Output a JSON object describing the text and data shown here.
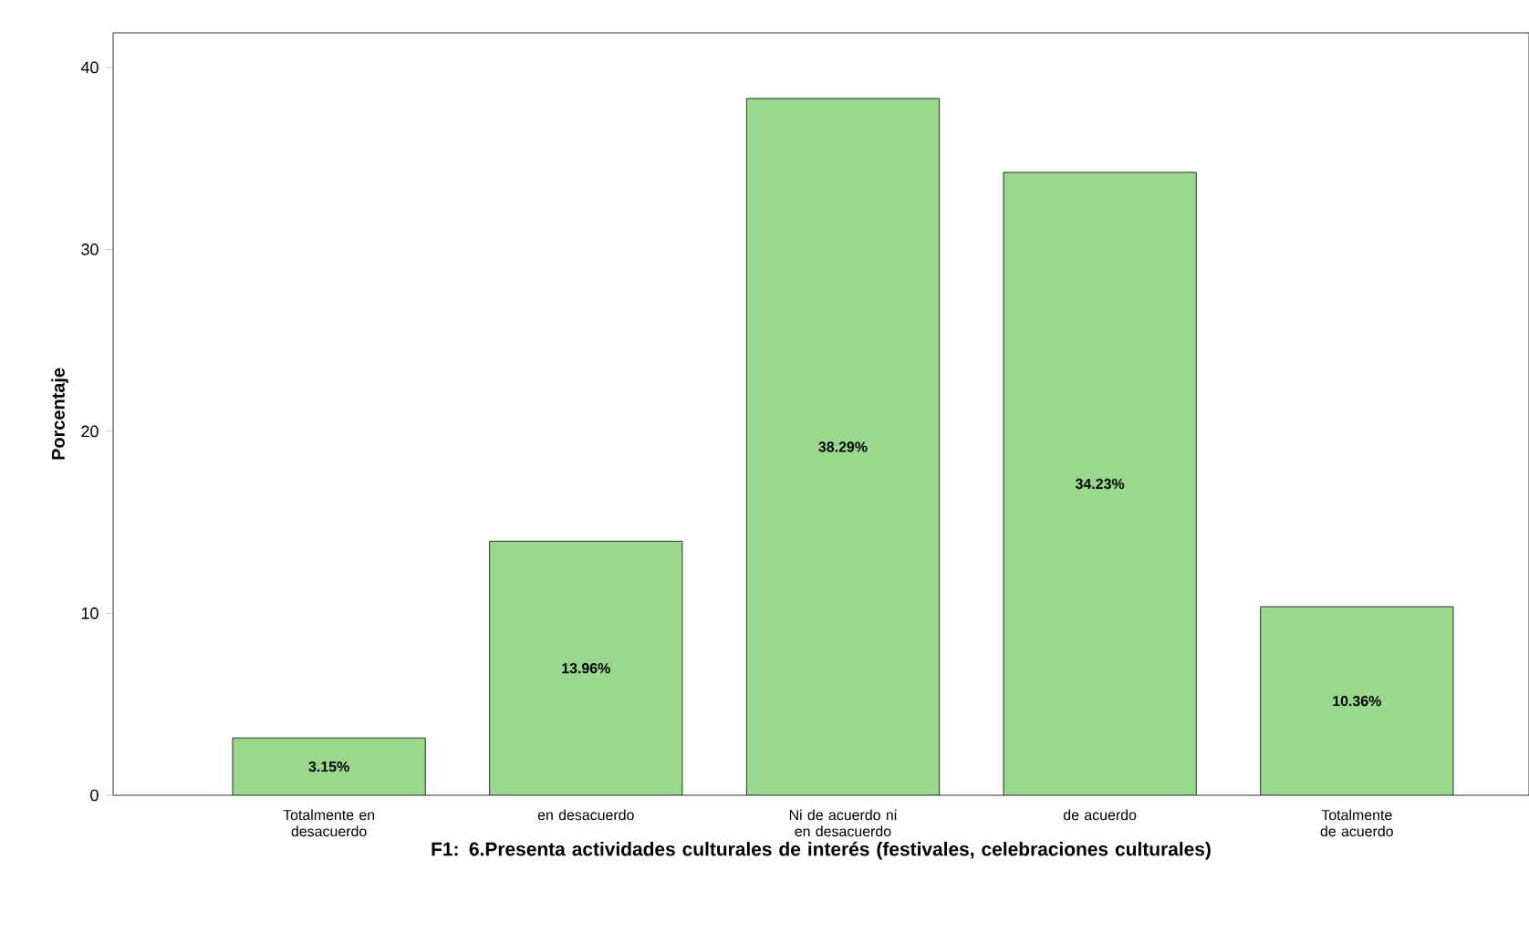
{
  "chart_data": {
    "type": "bar",
    "categories": [
      "Totalmente en desacuerdo",
      "en desacuerdo",
      "Ni de acuerdo ni en desacuerdo",
      "de acuerdo",
      "Totalmente de acuerdo"
    ],
    "values": [
      3.15,
      13.96,
      38.29,
      34.23,
      10.36
    ],
    "value_labels": [
      "3.15%",
      "13.96%",
      "38.29%",
      "34.23%",
      "10.36%"
    ],
    "color": "#98d98e",
    "xlabel": "F1: 6.Presenta actividades culturales de interés (festivales, celebraciones culturales)",
    "ylabel": "Porcentaje",
    "ylim": [
      0,
      41.9
    ],
    "yticks": [
      0,
      10,
      20,
      30,
      40
    ]
  }
}
